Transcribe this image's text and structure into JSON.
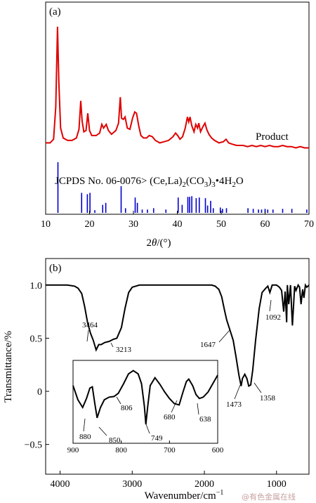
{
  "chart_data": [
    {
      "type": "line",
      "panel_label": "(a)",
      "xlabel_prefix": "2",
      "xlabel_theta": "θ",
      "xlabel_suffix": "/(°)",
      "xlim": [
        10,
        70
      ],
      "x_ticks": [
        10,
        20,
        30,
        40,
        50,
        60,
        70
      ],
      "series": [
        {
          "name": "Product",
          "color": "#e00000",
          "x": [
            10,
            11,
            11.8,
            12.3,
            12.7,
            13.0,
            13.4,
            14.0,
            15.0,
            16.0,
            17.0,
            17.6,
            18.0,
            18.3,
            18.7,
            19.2,
            19.6,
            20.0,
            20.5,
            21.5,
            22.3,
            22.8,
            23.2,
            23.8,
            24.3,
            25.0,
            26.0,
            26.6,
            27.0,
            27.3,
            27.7,
            28.1,
            28.6,
            29.2,
            29.8,
            30.3,
            30.7,
            31.2,
            31.7,
            32.3,
            33.0,
            33.6,
            34.3,
            35.0,
            36.0,
            37.0,
            38.0,
            39.0,
            39.6,
            40.1,
            40.6,
            41.2,
            41.8,
            42.3,
            42.6,
            42.9,
            43.3,
            43.8,
            44.2,
            44.6,
            44.9,
            45.3,
            45.8,
            46.3,
            46.7,
            47.2,
            47.8,
            48.5,
            49.5,
            50.5,
            51.1,
            51.7,
            52.5,
            53.5,
            55.0,
            56.0,
            57.0,
            58.0,
            59.0,
            60.0,
            61.0,
            62.0,
            63.0,
            64.0,
            65.0,
            66.0,
            67.0,
            68.0,
            69.0,
            70.0
          ],
          "y": [
            0.06,
            0.06,
            0.09,
            0.35,
            1.0,
            0.55,
            0.18,
            0.1,
            0.08,
            0.08,
            0.1,
            0.17,
            0.4,
            0.24,
            0.15,
            0.16,
            0.3,
            0.16,
            0.12,
            0.12,
            0.14,
            0.21,
            0.18,
            0.21,
            0.16,
            0.13,
            0.16,
            0.22,
            0.43,
            0.26,
            0.25,
            0.27,
            0.18,
            0.17,
            0.26,
            0.31,
            0.3,
            0.2,
            0.12,
            0.1,
            0.1,
            0.12,
            0.11,
            0.08,
            0.06,
            0.07,
            0.08,
            0.11,
            0.14,
            0.12,
            0.09,
            0.11,
            0.18,
            0.27,
            0.23,
            0.27,
            0.2,
            0.15,
            0.21,
            0.18,
            0.22,
            0.15,
            0.19,
            0.22,
            0.17,
            0.13,
            0.1,
            0.08,
            0.06,
            0.07,
            0.09,
            0.06,
            0.05,
            0.04,
            0.04,
            0.03,
            0.04,
            0.03,
            0.04,
            0.03,
            0.04,
            0.03,
            0.03,
            0.04,
            0.03,
            0.03,
            0.02,
            0.03,
            0.02,
            0.02
          ]
        }
      ],
      "reference": {
        "label_text": "JCPDS No. 06-0076> (Ce,La)",
        "sub1": "2",
        "mid1": "(CO",
        "sub2": "3",
        "mid2": ")",
        "sub3": "3",
        "mid3": "•4H",
        "sub4": "2",
        "end": "O",
        "color": "#0000cc",
        "positions": [
          12.8,
          18.2,
          19.5,
          20.1,
          21.2,
          23.0,
          23.7,
          27.2,
          28.2,
          30.4,
          30.9,
          32.0,
          33.2,
          34.6,
          37.4,
          40.2,
          41.1,
          42.4,
          42.8,
          43.3,
          44.3,
          45.0,
          46.4,
          46.9,
          47.6,
          48.2,
          49.8,
          50.3,
          51.2,
          56.1,
          57.3,
          58.5,
          59.2,
          60.0,
          60.6,
          61.8,
          64.0,
          66.1,
          69.5
        ],
        "heights": [
          0.76,
          0.3,
          0.28,
          0.3,
          0.04,
          0.12,
          0.15,
          0.4,
          0.07,
          0.23,
          0.15,
          0.05,
          0.05,
          0.07,
          0.05,
          0.23,
          0.12,
          0.24,
          0.24,
          0.25,
          0.22,
          0.23,
          0.22,
          0.11,
          0.18,
          0.07,
          0.08,
          0.06,
          0.07,
          0.07,
          0.06,
          0.05,
          0.05,
          0.06,
          0.05,
          0.05,
          0.06,
          0.06,
          0.05
        ]
      }
    },
    {
      "type": "line",
      "panel_label": "(b)",
      "xlabel": "Wavenumber/cm",
      "xlabel_sup": "−1",
      "ylabel": "Transmittance/%",
      "xlim": [
        4200,
        550
      ],
      "ylim": [
        -0.78,
        1.25
      ],
      "x_ticks": [
        4000,
        3000,
        2000,
        1000
      ],
      "y_ticks": [
        -0.5,
        0,
        0.5,
        1.0
      ],
      "y_tick_labels": [
        "−0.5",
        "0",
        "0.5",
        "1.0"
      ],
      "series": [
        {
          "name": "",
          "color": "#000000",
          "x": [
            4200,
            3900,
            3800,
            3750,
            3700,
            3660,
            3620,
            3580,
            3540,
            3500,
            3464,
            3430,
            3380,
            3320,
            3260,
            3213,
            3150,
            3100,
            3050,
            3000,
            2900,
            2800,
            1900,
            1850,
            1800,
            1760,
            1720,
            1690,
            1647,
            1600,
            1560,
            1520,
            1490,
            1473,
            1440,
            1410,
            1385,
            1358,
            1330,
            1290,
            1240,
            1200,
            1150,
            1120,
            1092,
            1060,
            1000,
            960,
            930,
            900,
            880,
            860,
            850,
            830,
            806,
            780,
            749,
            730,
            700,
            680,
            660,
            638,
            620,
            600,
            580,
            550
          ],
          "y": [
            1.0,
            1.0,
            0.99,
            0.97,
            0.92,
            0.8,
            0.65,
            0.55,
            0.48,
            0.39,
            0.44,
            0.44,
            0.46,
            0.47,
            0.49,
            0.5,
            0.6,
            0.78,
            0.93,
            0.98,
            1.0,
            1.0,
            1.0,
            0.99,
            0.96,
            0.89,
            0.76,
            0.67,
            0.58,
            0.48,
            0.32,
            0.15,
            0.05,
            0.12,
            0.16,
            0.12,
            0.05,
            0.06,
            0.2,
            0.48,
            0.78,
            0.93,
            0.97,
            0.99,
            0.93,
            1.0,
            1.0,
            0.98,
            0.95,
            0.75,
            0.94,
            0.65,
            1.0,
            0.82,
            1.0,
            0.62,
            0.99,
            0.95,
            1.0,
            0.98,
            0.82,
            0.96,
            0.88,
            1.0,
            0.98,
            1.0
          ]
        }
      ],
      "annotations": [
        "3464",
        "3213",
        "1647",
        "1473",
        "1358",
        "1092"
      ],
      "inset": {
        "xlim": [
          900,
          600
        ],
        "x_ticks": [
          900,
          800,
          700,
          600
        ],
        "x": [
          900,
          890,
          880,
          872,
          865,
          860,
          855,
          850,
          843,
          835,
          825,
          815,
          806,
          795,
          785,
          775,
          765,
          758,
          752,
          749,
          745,
          740,
          730,
          720,
          710,
          700,
          690,
          680,
          672,
          665,
          660,
          652,
          645,
          638,
          630,
          620,
          610,
          600
        ],
        "y": [
          0.72,
          0.5,
          0.38,
          0.52,
          0.68,
          0.7,
          0.45,
          0.22,
          0.38,
          0.5,
          0.54,
          0.55,
          0.6,
          0.75,
          0.9,
          0.95,
          0.9,
          0.75,
          0.4,
          0.12,
          0.4,
          0.72,
          0.84,
          0.74,
          0.62,
          0.52,
          0.44,
          0.42,
          0.62,
          0.78,
          0.82,
          0.72,
          0.58,
          0.52,
          0.54,
          0.62,
          0.75,
          0.88
        ],
        "annotations": [
          "880",
          "850",
          "806",
          "749",
          "680",
          "638"
        ]
      }
    }
  ],
  "watermark": "@有色金属在线"
}
